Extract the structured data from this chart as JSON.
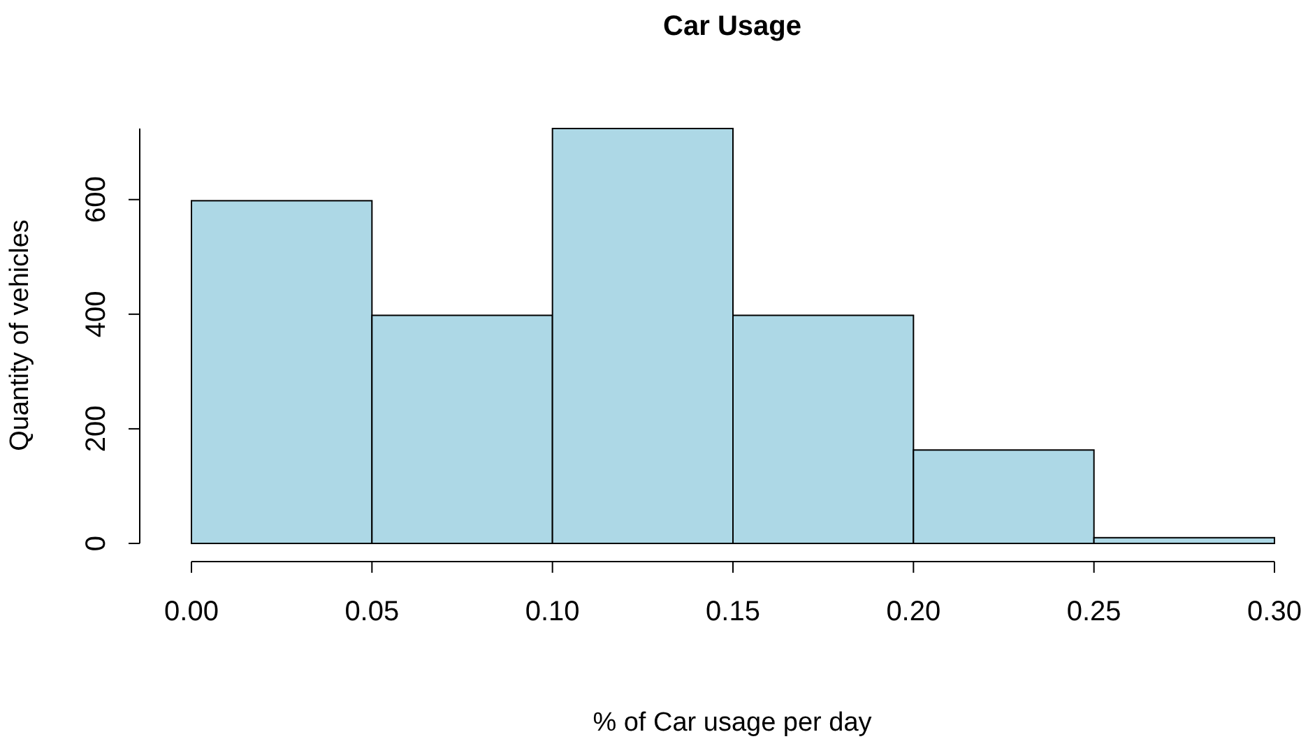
{
  "chart_data": {
    "type": "histogram",
    "title": "Car Usage",
    "xlabel": "% of Car usage per day",
    "ylabel": "Quantity of vehicles",
    "bins": [
      0,
      0.05,
      0.1,
      0.15,
      0.2,
      0.25,
      0.3
    ],
    "values": [
      598,
      398,
      724,
      398,
      163,
      10
    ],
    "color": "#add8e6",
    "xlim": [
      0,
      0.3
    ],
    "xticks": [
      {
        "value": 0,
        "label": "0.00"
      },
      {
        "value": 0.05,
        "label": "0.05"
      },
      {
        "value": 0.1,
        "label": "0.10"
      },
      {
        "value": 0.15,
        "label": "0.15"
      },
      {
        "value": 0.2,
        "label": "0.20"
      },
      {
        "value": 0.25,
        "label": "0.25"
      },
      {
        "value": 0.3,
        "label": "0.30"
      }
    ],
    "ylim": [
      0,
      724
    ],
    "yticks": [
      0,
      200,
      400,
      600
    ],
    "grid": false
  }
}
